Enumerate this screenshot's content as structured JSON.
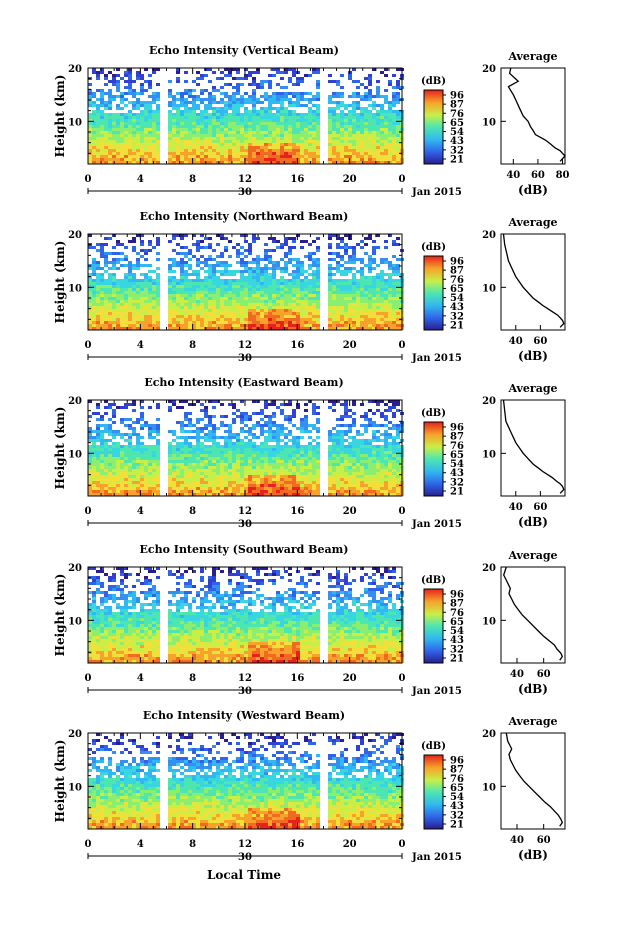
{
  "chart_data": [
    {
      "type": "heatmap",
      "title": "Echo Intensity (Vertical Beam)",
      "ylabel": "Height (km)",
      "yticks": [
        "20",
        "10"
      ],
      "xticks": [
        "0",
        "4",
        "8",
        "12",
        "16",
        "20",
        "0"
      ],
      "date_label": "30",
      "date_suffix": "Jan 2015",
      "colorbar": {
        "unit": "(dB)",
        "ticks": [
          "96",
          "87",
          "76",
          "65",
          "54",
          "43",
          "32",
          "21"
        ]
      },
      "xlim": [
        0,
        24
      ],
      "ylim": [
        2,
        20
      ],
      "data_gaps": [
        [
          5.4,
          6.0
        ],
        [
          17.5,
          18.1
        ]
      ]
    },
    {
      "type": "heatmap",
      "title": "Echo Intensity (Northward Beam)",
      "ylabel": "Height (km)",
      "yticks": [
        "20",
        "10"
      ],
      "xticks": [
        "0",
        "4",
        "8",
        "12",
        "16",
        "20",
        "0"
      ],
      "date_label": "30",
      "date_suffix": "Jan 2015",
      "colorbar": {
        "unit": "(dB)",
        "ticks": [
          "96",
          "87",
          "76",
          "65",
          "54",
          "43",
          "32",
          "21"
        ]
      },
      "xlim": [
        0,
        24
      ],
      "ylim": [
        2,
        20
      ],
      "data_gaps": [
        [
          5.4,
          6.0
        ],
        [
          17.5,
          18.1
        ]
      ]
    },
    {
      "type": "heatmap",
      "title": "Echo Intensity (Eastward Beam)",
      "ylabel": "Height (km)",
      "yticks": [
        "20",
        "10"
      ],
      "xticks": [
        "0",
        "4",
        "8",
        "12",
        "16",
        "20",
        "0"
      ],
      "date_label": "30",
      "date_suffix": "Jan 2015",
      "colorbar": {
        "unit": "(dB)",
        "ticks": [
          "96",
          "87",
          "76",
          "65",
          "54",
          "43",
          "32",
          "21"
        ]
      },
      "xlim": [
        0,
        24
      ],
      "ylim": [
        2,
        20
      ],
      "data_gaps": [
        [
          5.4,
          6.0
        ],
        [
          17.5,
          18.1
        ]
      ]
    },
    {
      "type": "heatmap",
      "title": "Echo Intensity (Southward Beam)",
      "ylabel": "Height (km)",
      "yticks": [
        "20",
        "10"
      ],
      "xticks": [
        "0",
        "4",
        "8",
        "12",
        "16",
        "20",
        "0"
      ],
      "date_label": "30",
      "date_suffix": "Jan 2015",
      "colorbar": {
        "unit": "(dB)",
        "ticks": [
          "96",
          "87",
          "76",
          "65",
          "54",
          "43",
          "32",
          "21"
        ]
      },
      "xlim": [
        0,
        24
      ],
      "ylim": [
        2,
        20
      ],
      "data_gaps": [
        [
          5.4,
          6.0
        ],
        [
          17.5,
          18.1
        ]
      ]
    },
    {
      "type": "heatmap",
      "title": "Echo Intensity (Westward Beam)",
      "ylabel": "Height (km)",
      "yticks": [
        "20",
        "10"
      ],
      "xticks": [
        "0",
        "4",
        "8",
        "12",
        "16",
        "20",
        "0"
      ],
      "date_label": "30",
      "date_suffix": "Jan 2015",
      "colorbar": {
        "unit": "(dB)",
        "ticks": [
          "96",
          "87",
          "76",
          "65",
          "54",
          "43",
          "32",
          "21"
        ]
      },
      "xlim": [
        0,
        24
      ],
      "ylim": [
        2,
        20
      ],
      "data_gaps": [
        [
          5.4,
          6.0
        ],
        [
          17.5,
          18.1
        ]
      ]
    },
    {
      "type": "line",
      "title": "Average",
      "xlabel": "(dB)",
      "xticks": [
        "40",
        "60",
        "80"
      ],
      "yticks": [
        "20",
        "10"
      ],
      "xlim": [
        30,
        82
      ],
      "ylim": [
        2,
        20
      ],
      "series": [
        {
          "x": [
            38,
            37,
            44,
            36,
            40,
            42,
            44,
            46,
            48,
            52,
            54,
            56,
            58,
            62,
            66,
            70,
            74,
            78,
            80,
            82,
            80,
            78
          ],
          "y": [
            20,
            19,
            17.5,
            16.5,
            15,
            14,
            13,
            12,
            11,
            10,
            9,
            8.3,
            7.5,
            7,
            6.5,
            5.8,
            5,
            4.5,
            4,
            3.5,
            3,
            2.5
          ]
        }
      ]
    },
    {
      "type": "line",
      "title": "Average",
      "xlabel": "(dB)",
      "xticks": [
        "40",
        "60"
      ],
      "yticks": [
        "20",
        "10"
      ],
      "xlim": [
        28,
        80
      ],
      "ylim": [
        2,
        20
      ],
      "series": [
        {
          "x": [
            30,
            31,
            33,
            34,
            36,
            38,
            40,
            43,
            46,
            50,
            54,
            58,
            62,
            66,
            70,
            74,
            76,
            78,
            79,
            76
          ],
          "y": [
            20,
            18,
            16,
            15,
            14,
            13,
            12,
            11,
            10,
            9,
            8,
            7.3,
            6.6,
            6,
            5.4,
            4.8,
            4.3,
            3.8,
            3.2,
            2.5
          ]
        }
      ]
    },
    {
      "type": "line",
      "title": "Average",
      "xlabel": "(dB)",
      "xticks": [
        "40",
        "60"
      ],
      "yticks": [
        "20",
        "10"
      ],
      "xlim": [
        28,
        80
      ],
      "ylim": [
        2,
        20
      ],
      "series": [
        {
          "x": [
            30,
            31,
            32,
            34,
            36,
            38,
            40,
            43,
            46,
            50,
            54,
            58,
            62,
            66,
            70,
            73,
            76,
            78,
            79,
            76
          ],
          "y": [
            20,
            18,
            16,
            15,
            14,
            13,
            12,
            11,
            10,
            9,
            8,
            7.3,
            6.6,
            6,
            5.4,
            4.8,
            4.3,
            3.8,
            3.2,
            2.5
          ]
        }
      ]
    },
    {
      "type": "line",
      "title": "Average",
      "xlabel": "(dB)",
      "xticks": [
        "40",
        "60"
      ],
      "yticks": [
        "20",
        "10"
      ],
      "xlim": [
        28,
        76
      ],
      "ylim": [
        2,
        20
      ],
      "series": [
        {
          "x": [
            32,
            30,
            33,
            35,
            34,
            36,
            38,
            41,
            44,
            48,
            52,
            56,
            60,
            64,
            68,
            70,
            73,
            74,
            72
          ],
          "y": [
            20,
            18.5,
            17,
            16,
            15,
            14,
            13,
            12,
            11,
            10,
            9,
            8,
            7,
            6.2,
            5.4,
            4.6,
            3.8,
            3.2,
            2.5
          ]
        }
      ]
    },
    {
      "type": "line",
      "title": "Average",
      "xlabel": "(dB)",
      "xticks": [
        "40",
        "60"
      ],
      "yticks": [
        "20",
        "10"
      ],
      "xlim": [
        28,
        76
      ],
      "ylim": [
        2,
        20
      ],
      "series": [
        {
          "x": [
            32,
            33,
            36,
            34,
            35,
            37,
            39,
            42,
            45,
            49,
            53,
            57,
            61,
            65,
            68,
            71,
            73,
            74,
            72
          ],
          "y": [
            20,
            18.5,
            17,
            16,
            15,
            14,
            13,
            12,
            11,
            10,
            9,
            8,
            7,
            6.2,
            5.4,
            4.6,
            3.8,
            3.2,
            2.5
          ]
        }
      ]
    }
  ],
  "footer": {
    "xlabel": "Local Time"
  }
}
